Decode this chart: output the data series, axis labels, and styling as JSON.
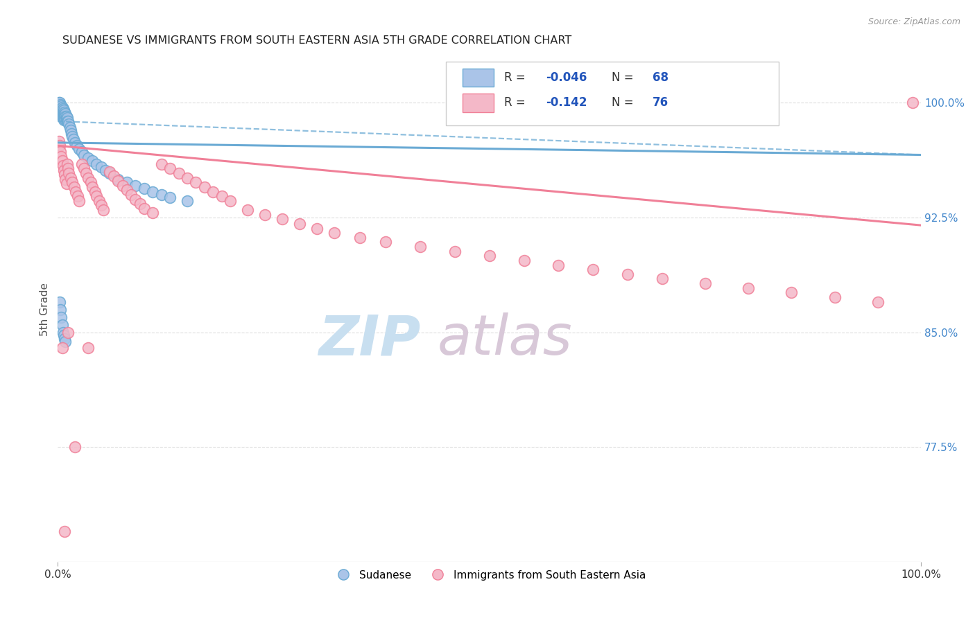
{
  "title": "SUDANESE VS IMMIGRANTS FROM SOUTH EASTERN ASIA 5TH GRADE CORRELATION CHART",
  "source": "Source: ZipAtlas.com",
  "ylabel": "5th Grade",
  "yticks_right": [
    1.0,
    0.925,
    0.85,
    0.775
  ],
  "ytick_labels_right": [
    "100.0%",
    "92.5%",
    "85.0%",
    "77.5%"
  ],
  "blue_color": "#6aaad4",
  "pink_color": "#f08098",
  "blue_fill": "#aac4e8",
  "pink_fill": "#f4b8c8",
  "watermark_zip": "ZIP",
  "watermark_atlas": "atlas",
  "watermark_color_zip": "#c8dff0",
  "watermark_color_atlas": "#d8c8d8",
  "R_blue": -0.046,
  "R_pink": -0.142,
  "N_blue": 68,
  "N_pink": 76,
  "blue_scatter_x": [
    0.001,
    0.002,
    0.002,
    0.002,
    0.003,
    0.003,
    0.003,
    0.003,
    0.004,
    0.004,
    0.004,
    0.004,
    0.005,
    0.005,
    0.005,
    0.005,
    0.006,
    0.006,
    0.006,
    0.006,
    0.007,
    0.007,
    0.007,
    0.007,
    0.008,
    0.008,
    0.008,
    0.009,
    0.009,
    0.009,
    0.01,
    0.01,
    0.011,
    0.011,
    0.012,
    0.013,
    0.014,
    0.015,
    0.016,
    0.017,
    0.018,
    0.02,
    0.022,
    0.025,
    0.028,
    0.03,
    0.035,
    0.04,
    0.045,
    0.05,
    0.055,
    0.06,
    0.07,
    0.08,
    0.09,
    0.1,
    0.11,
    0.12,
    0.13,
    0.15,
    0.002,
    0.003,
    0.004,
    0.005,
    0.006,
    0.007,
    0.008,
    0.009
  ],
  "blue_scatter_y": [
    1.0,
    1.0,
    0.998,
    0.997,
    0.999,
    0.997,
    0.996,
    0.994,
    0.998,
    0.996,
    0.994,
    0.992,
    0.997,
    0.995,
    0.993,
    0.991,
    0.996,
    0.994,
    0.992,
    0.99,
    0.995,
    0.993,
    0.991,
    0.989,
    0.994,
    0.992,
    0.99,
    0.993,
    0.991,
    0.989,
    0.991,
    0.989,
    0.99,
    0.988,
    0.988,
    0.986,
    0.984,
    0.982,
    0.98,
    0.978,
    0.976,
    0.974,
    0.972,
    0.97,
    0.968,
    0.966,
    0.964,
    0.962,
    0.96,
    0.958,
    0.956,
    0.954,
    0.95,
    0.948,
    0.946,
    0.944,
    0.942,
    0.94,
    0.938,
    0.936,
    0.87,
    0.865,
    0.86,
    0.855,
    0.85,
    0.848,
    0.846,
    0.844
  ],
  "pink_scatter_x": [
    0.001,
    0.002,
    0.003,
    0.004,
    0.005,
    0.006,
    0.007,
    0.008,
    0.009,
    0.01,
    0.011,
    0.012,
    0.013,
    0.015,
    0.017,
    0.019,
    0.021,
    0.023,
    0.025,
    0.028,
    0.03,
    0.033,
    0.035,
    0.038,
    0.04,
    0.043,
    0.045,
    0.048,
    0.05,
    0.053,
    0.06,
    0.065,
    0.07,
    0.075,
    0.08,
    0.085,
    0.09,
    0.095,
    0.1,
    0.11,
    0.12,
    0.13,
    0.14,
    0.15,
    0.16,
    0.17,
    0.18,
    0.19,
    0.2,
    0.22,
    0.24,
    0.26,
    0.28,
    0.3,
    0.32,
    0.35,
    0.38,
    0.42,
    0.46,
    0.5,
    0.54,
    0.58,
    0.62,
    0.66,
    0.7,
    0.75,
    0.8,
    0.85,
    0.9,
    0.95,
    0.005,
    0.008,
    0.012,
    0.02,
    0.035,
    0.99
  ],
  "pink_scatter_y": [
    0.975,
    0.972,
    0.968,
    0.965,
    0.962,
    0.959,
    0.956,
    0.953,
    0.95,
    0.947,
    0.96,
    0.957,
    0.954,
    0.951,
    0.948,
    0.945,
    0.942,
    0.939,
    0.936,
    0.96,
    0.957,
    0.954,
    0.951,
    0.948,
    0.945,
    0.942,
    0.939,
    0.936,
    0.933,
    0.93,
    0.955,
    0.952,
    0.949,
    0.946,
    0.943,
    0.94,
    0.937,
    0.934,
    0.931,
    0.928,
    0.96,
    0.957,
    0.954,
    0.951,
    0.948,
    0.945,
    0.942,
    0.939,
    0.936,
    0.93,
    0.927,
    0.924,
    0.921,
    0.918,
    0.915,
    0.912,
    0.909,
    0.906,
    0.903,
    0.9,
    0.897,
    0.894,
    0.891,
    0.888,
    0.885,
    0.882,
    0.879,
    0.876,
    0.873,
    0.87,
    0.84,
    0.72,
    0.85,
    0.775,
    0.84,
    1.0
  ],
  "xlim": [
    0.0,
    1.0
  ],
  "ylim": [
    0.7,
    1.03
  ],
  "grid_color": "#dddddd",
  "bg_color": "#ffffff",
  "blue_line_intercept": 0.974,
  "blue_line_slope": -0.008,
  "blue_dash_intercept": 0.988,
  "blue_dash_slope": -0.022,
  "pink_line_intercept": 0.972,
  "pink_line_slope": -0.052
}
